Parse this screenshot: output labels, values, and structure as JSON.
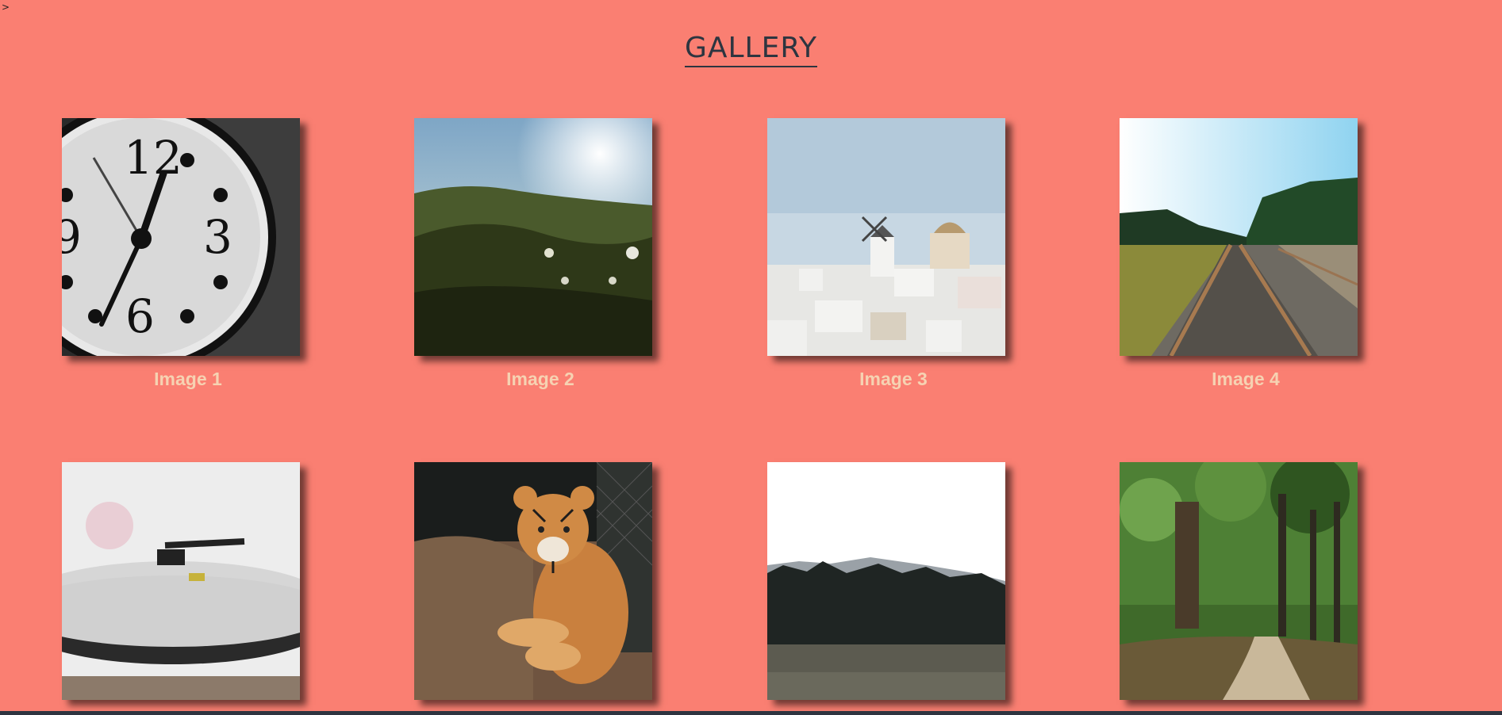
{
  "stray_char": ">",
  "page_title": "GALLERY",
  "colors": {
    "background": "#fa7f72",
    "title": "#2d3540",
    "caption": "#f6d2b2",
    "bottom_bar": "#2e3440"
  },
  "gallery": {
    "items": [
      {
        "caption": "Image 1",
        "image": "clock-photo"
      },
      {
        "caption": "Image 2",
        "image": "grass-field-photo"
      },
      {
        "caption": "Image 3",
        "image": "white-village-photo"
      },
      {
        "caption": "Image 4",
        "image": "railroad-tracks-photo"
      },
      {
        "caption": "",
        "image": "record-player-photo"
      },
      {
        "caption": "",
        "image": "tiger-photo"
      },
      {
        "caption": "",
        "image": "pine-forest-hill-photo"
      },
      {
        "caption": "",
        "image": "forest-path-photo"
      }
    ]
  }
}
